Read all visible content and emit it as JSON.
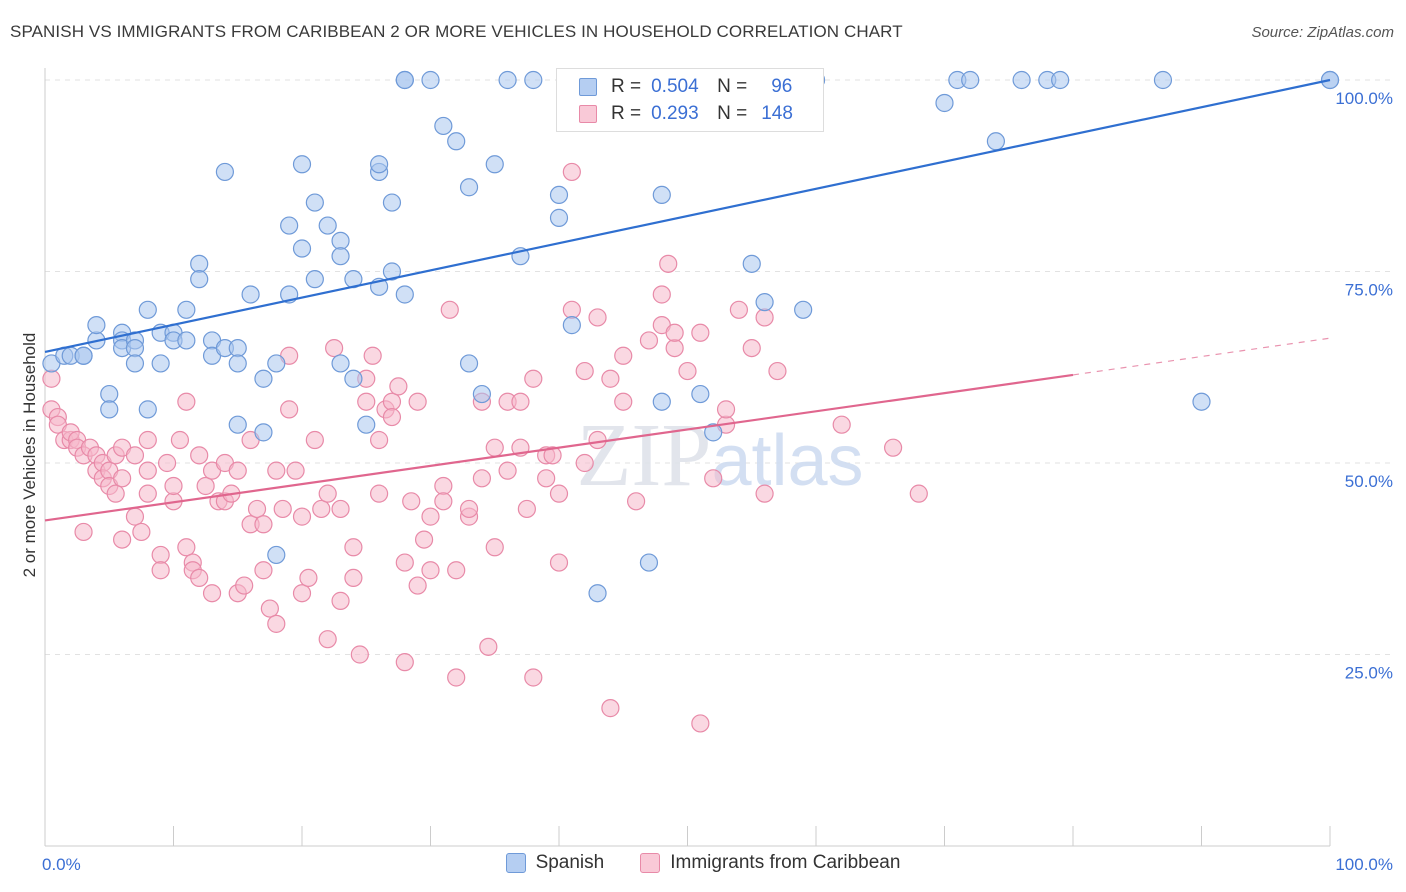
{
  "title": "SPANISH VS IMMIGRANTS FROM CARIBBEAN 2 OR MORE VEHICLES IN HOUSEHOLD CORRELATION CHART",
  "source": "Source: ZipAtlas.com",
  "watermark": "ZIPatlas",
  "legend": {
    "r_label": "R =",
    "n_label": "N =",
    "spanish": {
      "r": "0.504",
      "n": "96"
    },
    "caribbean": {
      "r": "0.293",
      "n": "148"
    }
  },
  "bottom_legend": {
    "spanish": "Spanish",
    "caribbean": "Immigrants from Caribbean"
  },
  "colors": {
    "spanish_fill": "#a9c6ef",
    "spanish_stroke": "#6f9ad8",
    "spanish_line": "#2f6fd0",
    "caribbean_fill": "#f5b8cb",
    "caribbean_stroke": "#e88aa8",
    "caribbean_line": "#e0668e",
    "tick_label": "#3b6fd4",
    "grid": "#e2e2e2",
    "axis": "#cccccc"
  },
  "chart_data": {
    "type": "scatter",
    "title": "SPANISH VS IMMIGRANTS FROM CARIBBEAN 2 OR MORE VEHICLES IN HOUSEHOLD CORRELATION CHART",
    "xlabel": "",
    "ylabel": "2 or more Vehicles in Household",
    "xlim": [
      0,
      100
    ],
    "ylim": [
      0,
      100
    ],
    "x_tick_labels": [
      "0.0%",
      "100.0%"
    ],
    "y_ticks": [
      25,
      50,
      75,
      100
    ],
    "y_tick_labels": [
      "25.0%",
      "50.0%",
      "75.0%",
      "100.0%"
    ],
    "grid": true,
    "legend_position": "top-center",
    "series": [
      {
        "name": "Spanish",
        "r": 0.504,
        "n": 96,
        "trend": {
          "x": [
            0,
            100
          ],
          "y": [
            64.5,
            100.0
          ]
        },
        "points": [
          [
            0.5,
            63
          ],
          [
            1.5,
            64
          ],
          [
            2,
            64
          ],
          [
            3,
            64
          ],
          [
            3,
            64
          ],
          [
            4,
            66
          ],
          [
            4,
            68
          ],
          [
            5,
            59
          ],
          [
            5,
            57
          ],
          [
            6,
            67
          ],
          [
            6,
            66
          ],
          [
            6,
            65
          ],
          [
            7,
            66
          ],
          [
            7,
            65
          ],
          [
            7,
            63
          ],
          [
            8,
            57
          ],
          [
            8,
            70
          ],
          [
            9,
            63
          ],
          [
            9,
            67
          ],
          [
            10,
            67
          ],
          [
            10,
            66
          ],
          [
            11,
            70
          ],
          [
            11,
            66
          ],
          [
            12,
            76
          ],
          [
            12,
            74
          ],
          [
            13,
            66
          ],
          [
            13,
            64
          ],
          [
            14,
            65
          ],
          [
            14,
            88
          ],
          [
            15,
            65
          ],
          [
            15,
            55
          ],
          [
            15,
            63
          ],
          [
            16,
            72
          ],
          [
            17,
            54
          ],
          [
            17,
            61
          ],
          [
            18,
            38
          ],
          [
            18,
            63
          ],
          [
            19,
            72
          ],
          [
            19,
            81
          ],
          [
            20,
            89
          ],
          [
            20,
            78
          ],
          [
            21,
            74
          ],
          [
            21,
            84
          ],
          [
            22,
            81
          ],
          [
            23,
            79
          ],
          [
            23,
            77
          ],
          [
            23,
            63
          ],
          [
            24,
            74
          ],
          [
            24,
            61
          ],
          [
            25,
            55
          ],
          [
            26,
            73
          ],
          [
            26,
            88
          ],
          [
            26,
            89
          ],
          [
            27,
            75
          ],
          [
            27,
            84
          ],
          [
            28,
            72
          ],
          [
            28,
            100
          ],
          [
            28,
            100
          ],
          [
            30,
            100
          ],
          [
            31,
            94
          ],
          [
            32,
            92
          ],
          [
            33,
            86
          ],
          [
            33,
            63
          ],
          [
            34,
            59
          ],
          [
            35,
            89
          ],
          [
            36,
            100
          ],
          [
            37,
            77
          ],
          [
            38,
            100
          ],
          [
            40,
            85
          ],
          [
            40,
            82
          ],
          [
            41,
            68
          ],
          [
            43,
            33
          ],
          [
            47,
            37
          ],
          [
            48,
            58
          ],
          [
            48,
            85
          ],
          [
            48,
            100
          ],
          [
            49,
            100
          ],
          [
            50,
            100
          ],
          [
            51,
            59
          ],
          [
            52,
            54
          ],
          [
            55,
            76
          ],
          [
            56,
            71
          ],
          [
            59,
            70
          ],
          [
            60,
            100
          ],
          [
            60,
            100
          ],
          [
            70,
            97
          ],
          [
            71,
            100
          ],
          [
            72,
            100
          ],
          [
            74,
            92
          ],
          [
            76,
            100
          ],
          [
            78,
            100
          ],
          [
            79,
            100
          ],
          [
            87,
            100
          ],
          [
            90,
            58
          ],
          [
            100,
            100
          ],
          [
            100,
            100
          ]
        ]
      },
      {
        "name": "Immigrants from Caribbean",
        "r": 0.293,
        "n": 148,
        "trend": {
          "x": [
            0,
            80,
            100
          ],
          "y": [
            42.5,
            61.5,
            66.3
          ]
        },
        "points": [
          [
            0.5,
            57
          ],
          [
            0.5,
            61
          ],
          [
            1,
            56
          ],
          [
            1,
            55
          ],
          [
            1.5,
            53
          ],
          [
            2,
            53
          ],
          [
            2,
            54
          ],
          [
            2.5,
            53
          ],
          [
            2.5,
            52
          ],
          [
            3,
            41
          ],
          [
            3,
            51
          ],
          [
            3.5,
            52
          ],
          [
            4,
            51
          ],
          [
            4,
            49
          ],
          [
            4.5,
            50
          ],
          [
            4.5,
            48
          ],
          [
            5,
            49
          ],
          [
            5,
            47
          ],
          [
            5.5,
            46
          ],
          [
            5.5,
            51
          ],
          [
            6,
            52
          ],
          [
            6,
            48
          ],
          [
            6,
            40
          ],
          [
            7,
            51
          ],
          [
            7,
            43
          ],
          [
            7.5,
            41
          ],
          [
            8,
            49
          ],
          [
            8,
            46
          ],
          [
            8,
            53
          ],
          [
            9,
            38
          ],
          [
            9,
            36
          ],
          [
            9.5,
            50
          ],
          [
            10,
            45
          ],
          [
            10,
            47
          ],
          [
            10.5,
            53
          ],
          [
            11,
            58
          ],
          [
            11,
            39
          ],
          [
            11.5,
            37
          ],
          [
            11.5,
            36
          ],
          [
            12,
            35
          ],
          [
            12,
            51
          ],
          [
            12.5,
            47
          ],
          [
            13,
            33
          ],
          [
            13,
            49
          ],
          [
            13.5,
            45
          ],
          [
            14,
            50
          ],
          [
            14,
            45
          ],
          [
            14.5,
            46
          ],
          [
            15,
            49
          ],
          [
            15,
            33
          ],
          [
            15.5,
            34
          ],
          [
            16,
            42
          ],
          [
            16,
            53
          ],
          [
            16.5,
            44
          ],
          [
            17,
            36
          ],
          [
            17,
            42
          ],
          [
            17.5,
            31
          ],
          [
            18,
            29
          ],
          [
            18,
            49
          ],
          [
            18.5,
            44
          ],
          [
            19,
            64
          ],
          [
            19,
            57
          ],
          [
            19.5,
            49
          ],
          [
            20,
            43
          ],
          [
            20,
            33
          ],
          [
            20.5,
            35
          ],
          [
            21,
            53
          ],
          [
            21.5,
            44
          ],
          [
            22,
            46
          ],
          [
            22,
            27
          ],
          [
            22.5,
            65
          ],
          [
            23,
            32
          ],
          [
            23,
            44
          ],
          [
            24,
            35
          ],
          [
            24,
            39
          ],
          [
            24.5,
            25
          ],
          [
            25,
            58
          ],
          [
            25,
            61
          ],
          [
            25.5,
            64
          ],
          [
            26,
            46
          ],
          [
            26,
            53
          ],
          [
            26.5,
            57
          ],
          [
            27,
            58
          ],
          [
            27,
            56
          ],
          [
            27.5,
            60
          ],
          [
            28,
            37
          ],
          [
            28,
            24
          ],
          [
            28.5,
            45
          ],
          [
            29,
            34
          ],
          [
            29,
            58
          ],
          [
            29.5,
            40
          ],
          [
            30,
            43
          ],
          [
            30,
            36
          ],
          [
            31,
            47
          ],
          [
            31,
            45
          ],
          [
            31.5,
            70
          ],
          [
            32,
            36
          ],
          [
            32,
            22
          ],
          [
            33,
            43
          ],
          [
            33,
            44
          ],
          [
            34,
            48
          ],
          [
            34,
            58
          ],
          [
            34.5,
            26
          ],
          [
            35,
            39
          ],
          [
            35,
            52
          ],
          [
            36,
            58
          ],
          [
            36,
            49
          ],
          [
            37,
            52
          ],
          [
            37,
            58
          ],
          [
            37.5,
            44
          ],
          [
            38,
            22
          ],
          [
            38,
            61
          ],
          [
            39,
            51
          ],
          [
            39,
            48
          ],
          [
            39.5,
            51
          ],
          [
            40,
            46
          ],
          [
            40,
            37
          ],
          [
            41,
            88
          ],
          [
            41,
            70
          ],
          [
            42,
            50
          ],
          [
            42,
            62
          ],
          [
            43,
            69
          ],
          [
            43,
            53
          ],
          [
            44,
            61
          ],
          [
            44,
            18
          ],
          [
            45,
            64
          ],
          [
            45,
            58
          ],
          [
            46,
            45
          ],
          [
            47,
            66
          ],
          [
            48,
            72
          ],
          [
            48,
            68
          ],
          [
            48.5,
            76
          ],
          [
            49,
            65
          ],
          [
            49,
            67
          ],
          [
            50,
            62
          ],
          [
            51,
            67
          ],
          [
            51,
            16
          ],
          [
            52,
            48
          ],
          [
            53,
            55
          ],
          [
            53,
            57
          ],
          [
            54,
            70
          ],
          [
            55,
            65
          ],
          [
            56,
            46
          ],
          [
            56,
            69
          ],
          [
            57,
            62
          ],
          [
            62,
            55
          ],
          [
            66,
            52
          ],
          [
            68,
            46
          ]
        ]
      }
    ]
  }
}
